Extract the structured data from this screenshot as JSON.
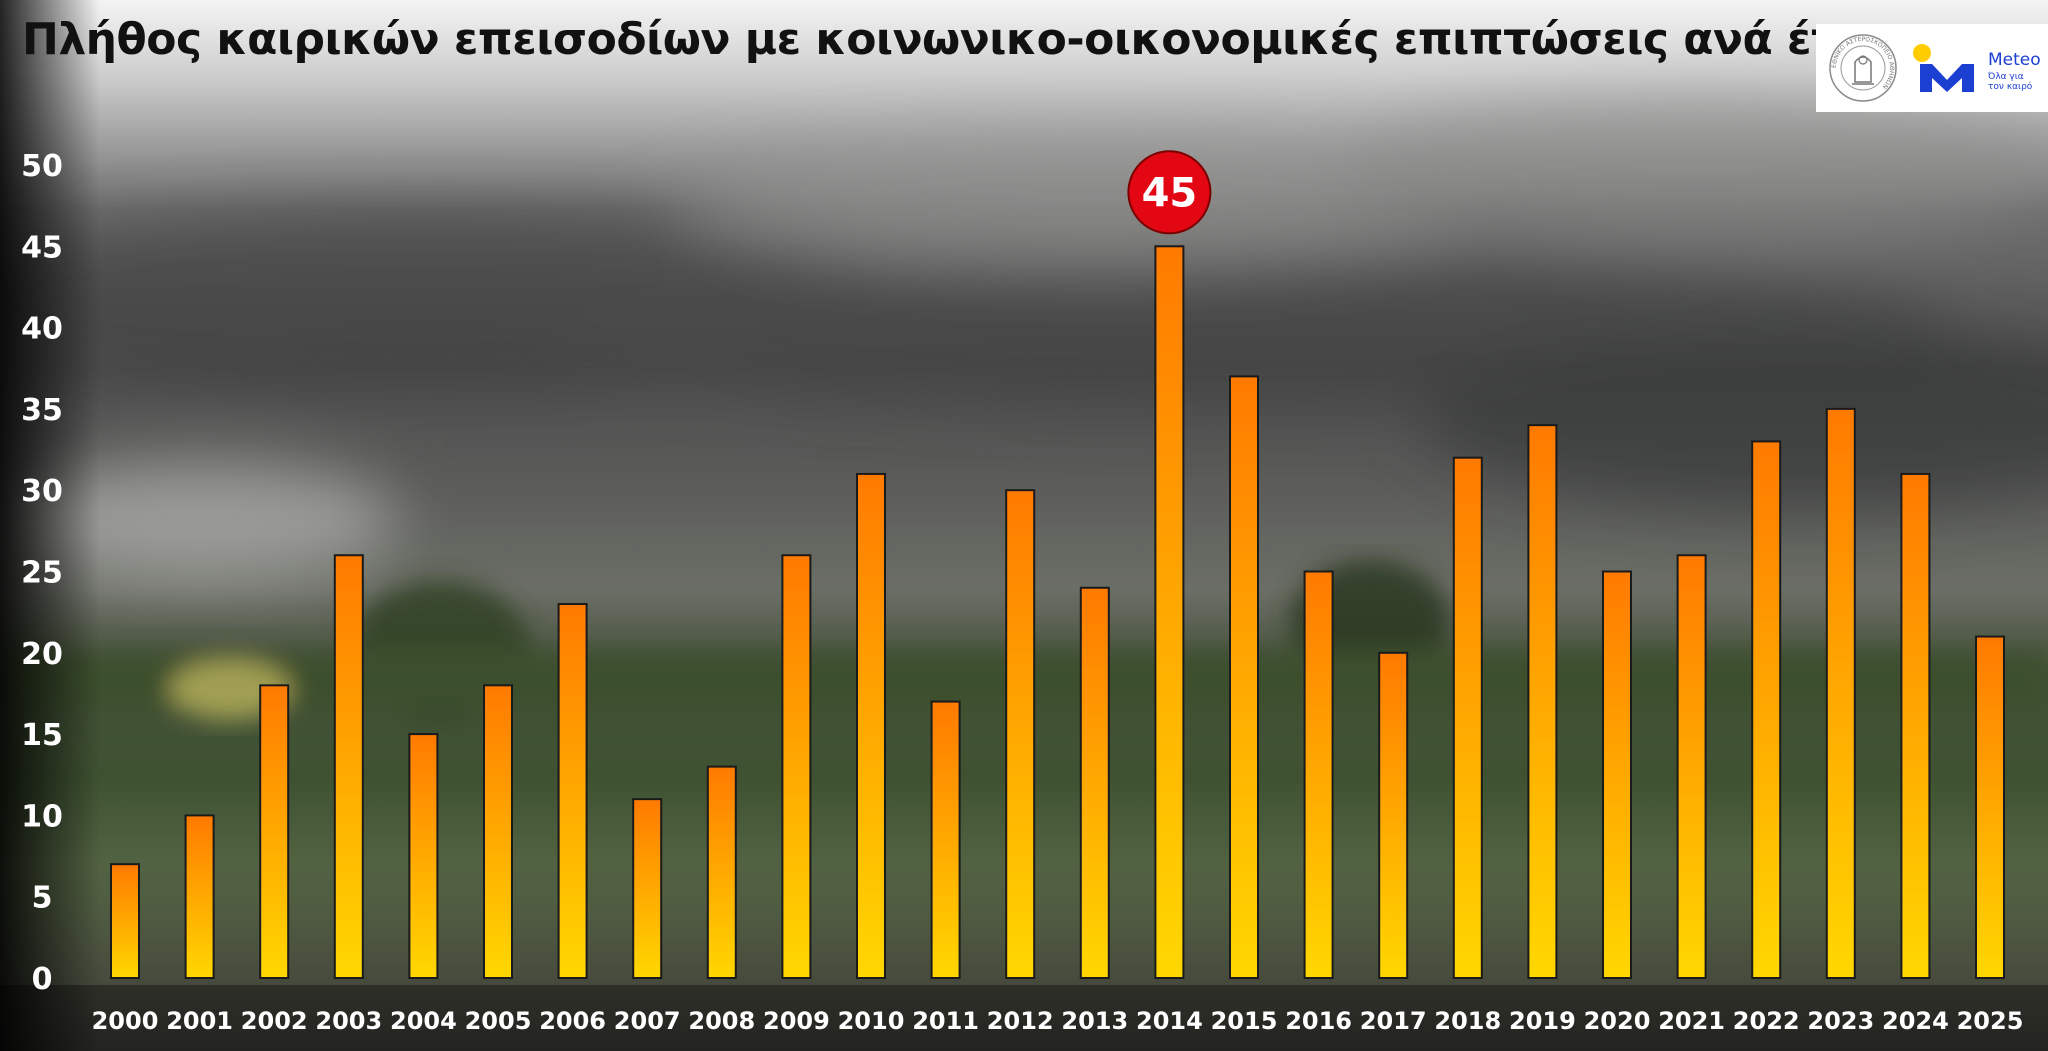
{
  "page": {
    "title": "Πλήθος καιρικών επεισοδίων με κοινωνικο-οικονομικές επιπτώσεις ανά έτος"
  },
  "logos": {
    "seal_text": "ΕΘΝΙΚΟ ΑΣΤΕΡΟΣΚΟΠΕΙΟ ΑΘΗΝΩΝ",
    "meteo_name": "Meteo",
    "meteo_tagline_1": "Όλα για",
    "meteo_tagline_2": "τον καιρό",
    "meteo_blue": "#1b3fd1",
    "meteo_yellow": "#ffcc00"
  },
  "colors": {
    "bar_top": "#ff7a00",
    "bar_bottom": "#ffd700",
    "bar_outline": "#1a1a1a",
    "highlight_circle": "#e30613",
    "axis_text": "#ffffff"
  },
  "chart_data": {
    "type": "bar",
    "title": "Πλήθος καιρικών επεισοδίων με κοινωνικο-οικονομικές επιπτώσεις ανά έτος",
    "xlabel": "",
    "ylabel": "",
    "categories": [
      "2000",
      "2001",
      "2002",
      "2003",
      "2004",
      "2005",
      "2006",
      "2007",
      "2008",
      "2009",
      "2010",
      "2011",
      "2012",
      "2013",
      "2014",
      "2015",
      "2016",
      "2017",
      "2018",
      "2019",
      "2020",
      "2021",
      "2022",
      "2023",
      "2024",
      "2025"
    ],
    "values": [
      7,
      10,
      18,
      26,
      15,
      18,
      23,
      11,
      13,
      26,
      31,
      17,
      30,
      24,
      45,
      37,
      25,
      20,
      32,
      34,
      25,
      26,
      33,
      35,
      31,
      21
    ],
    "yticks": [
      "0",
      "5",
      "10",
      "15",
      "20",
      "25",
      "30",
      "35",
      "40",
      "45",
      "50"
    ],
    "ylim": [
      0,
      50
    ],
    "grid": false,
    "legend": "none",
    "highlight": {
      "category": "2014",
      "label": "45"
    }
  }
}
